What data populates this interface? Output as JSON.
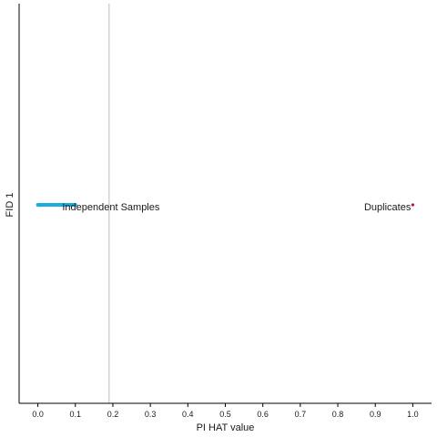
{
  "chart_data": {
    "type": "scatter",
    "xlabel": "PI HAT value",
    "ylabel": "FID 1",
    "xlim": [
      -0.05,
      1.05
    ],
    "x_ticks": [
      "0.0",
      "0.1",
      "0.2",
      "0.3",
      "0.4",
      "0.5",
      "0.6",
      "0.7",
      "0.8",
      "0.9",
      "1.0"
    ],
    "grid": false,
    "reference_line": {
      "x": 0.19,
      "color": "#bdbdbd"
    },
    "independent": {
      "x_start": 0.0,
      "x_end": 0.1,
      "color": "#1aaee0"
    },
    "duplicates": {
      "points": [
        1.0
      ],
      "color": "#c0152f"
    },
    "annotations": [
      {
        "text": "Independent Samples",
        "x": 0.065,
        "anchor": "start"
      },
      {
        "text": "Duplicates",
        "x": 0.995,
        "anchor": "end"
      }
    ]
  }
}
